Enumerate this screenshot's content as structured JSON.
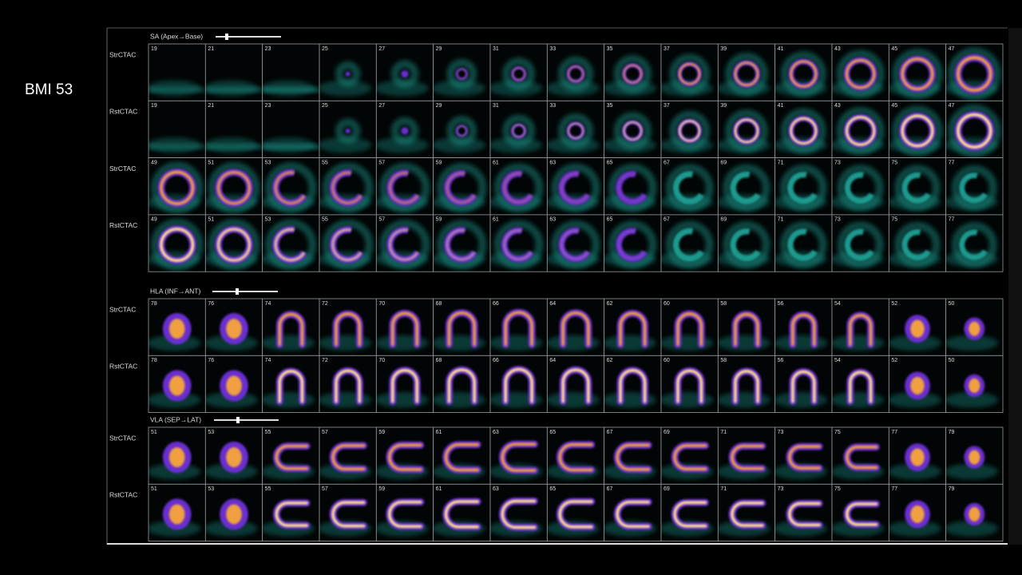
{
  "side_label": "BMI 53",
  "sections": [
    {
      "title": "SA (Apex→Base)",
      "rows": [
        {
          "label": "StrCTAC",
          "slices": [
            19,
            21,
            23,
            25,
            27,
            29,
            31,
            33,
            35,
            37,
            39,
            41,
            43,
            45,
            47
          ]
        },
        {
          "label": "RstCTAC",
          "slices": [
            19,
            21,
            23,
            25,
            27,
            29,
            31,
            33,
            35,
            37,
            39,
            41,
            43,
            45,
            47
          ]
        },
        {
          "label": "StrCTAC",
          "slices": [
            49,
            51,
            53,
            55,
            57,
            59,
            61,
            63,
            65,
            67,
            69,
            71,
            73,
            75,
            77
          ]
        },
        {
          "label": "RstCTAC",
          "slices": [
            49,
            51,
            53,
            55,
            57,
            59,
            61,
            63,
            65,
            67,
            69,
            71,
            73,
            75,
            77
          ]
        }
      ]
    },
    {
      "title": "HLA (INF→ANT)",
      "rows": [
        {
          "label": "StrCTAC",
          "slices": [
            78,
            76,
            74,
            72,
            70,
            68,
            66,
            64,
            62,
            60,
            58,
            56,
            54,
            52,
            50
          ]
        },
        {
          "label": "RstCTAC",
          "slices": [
            78,
            76,
            74,
            72,
            70,
            68,
            66,
            64,
            62,
            60,
            58,
            56,
            54,
            52,
            50
          ]
        }
      ]
    },
    {
      "title": "VLA (SEP→LAT)",
      "rows": [
        {
          "label": "StrCTAC",
          "slices": [
            51,
            53,
            55,
            57,
            59,
            61,
            63,
            65,
            67,
            69,
            71,
            73,
            75,
            77,
            79
          ]
        },
        {
          "label": "RstCTAC",
          "slices": [
            51,
            53,
            55,
            57,
            59,
            61,
            63,
            65,
            67,
            69,
            71,
            73,
            75,
            77,
            79
          ]
        }
      ]
    }
  ]
}
